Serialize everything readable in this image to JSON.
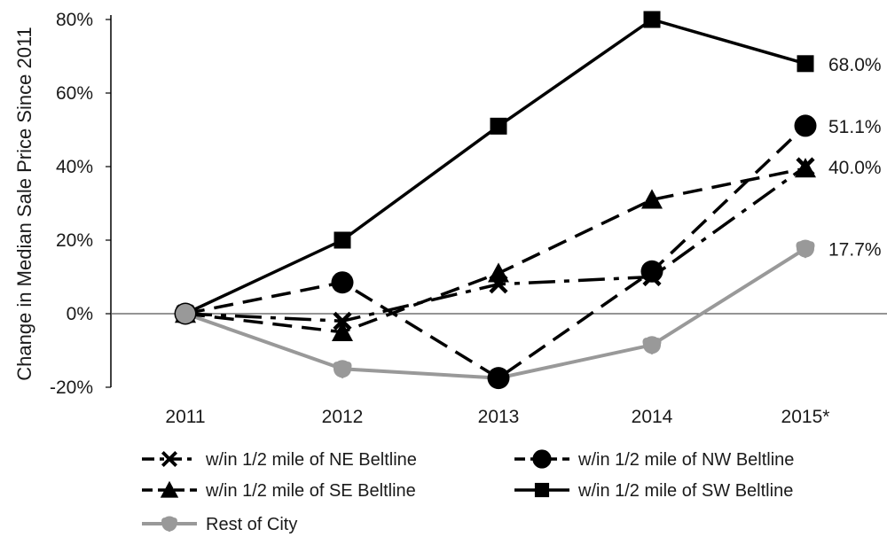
{
  "chart_data": {
    "type": "line",
    "title": "",
    "xlabel": "",
    "ylabel": "Change in Median Sale Price Since 2011",
    "categories": [
      "2011",
      "2012",
      "2013",
      "2014",
      "2015*"
    ],
    "ylim": [
      -20,
      80
    ],
    "yticks": [
      -20,
      0,
      20,
      40,
      60,
      80
    ],
    "ytick_labels": [
      "-20%",
      "0%",
      "20%",
      "40%",
      "60%",
      "80%"
    ],
    "grid": false,
    "legend_position": "bottom",
    "series": [
      {
        "name": "w/in 1/2 mile of NE Beltline",
        "values": [
          0,
          -2,
          8,
          10,
          40.0
        ],
        "marker": "x",
        "dash": "long-dash",
        "color": "#000000",
        "end_label": "40.0%"
      },
      {
        "name": "w/in 1/2 mile of NW Beltline",
        "values": [
          0,
          8.5,
          -17.5,
          11.5,
          51.1
        ],
        "marker": "circle",
        "dash": "dash",
        "color": "#000000",
        "end_label": "51.1%"
      },
      {
        "name": "w/in 1/2 mile of SE Beltline",
        "values": [
          0,
          -5,
          11,
          31,
          39.5
        ],
        "marker": "triangle",
        "dash": "dash",
        "color": "#000000",
        "end_label": ""
      },
      {
        "name": "w/in 1/2 mile of SW Beltline",
        "values": [
          0,
          20,
          51,
          80,
          68.0
        ],
        "marker": "square",
        "dash": "solid",
        "color": "#000000",
        "end_label": "68.0%"
      },
      {
        "name": "Rest of City",
        "values": [
          0,
          -15,
          -17.5,
          -8.5,
          17.7
        ],
        "marker": "heart",
        "dash": "solid",
        "color": "#999999",
        "end_label": "17.7%"
      }
    ]
  }
}
